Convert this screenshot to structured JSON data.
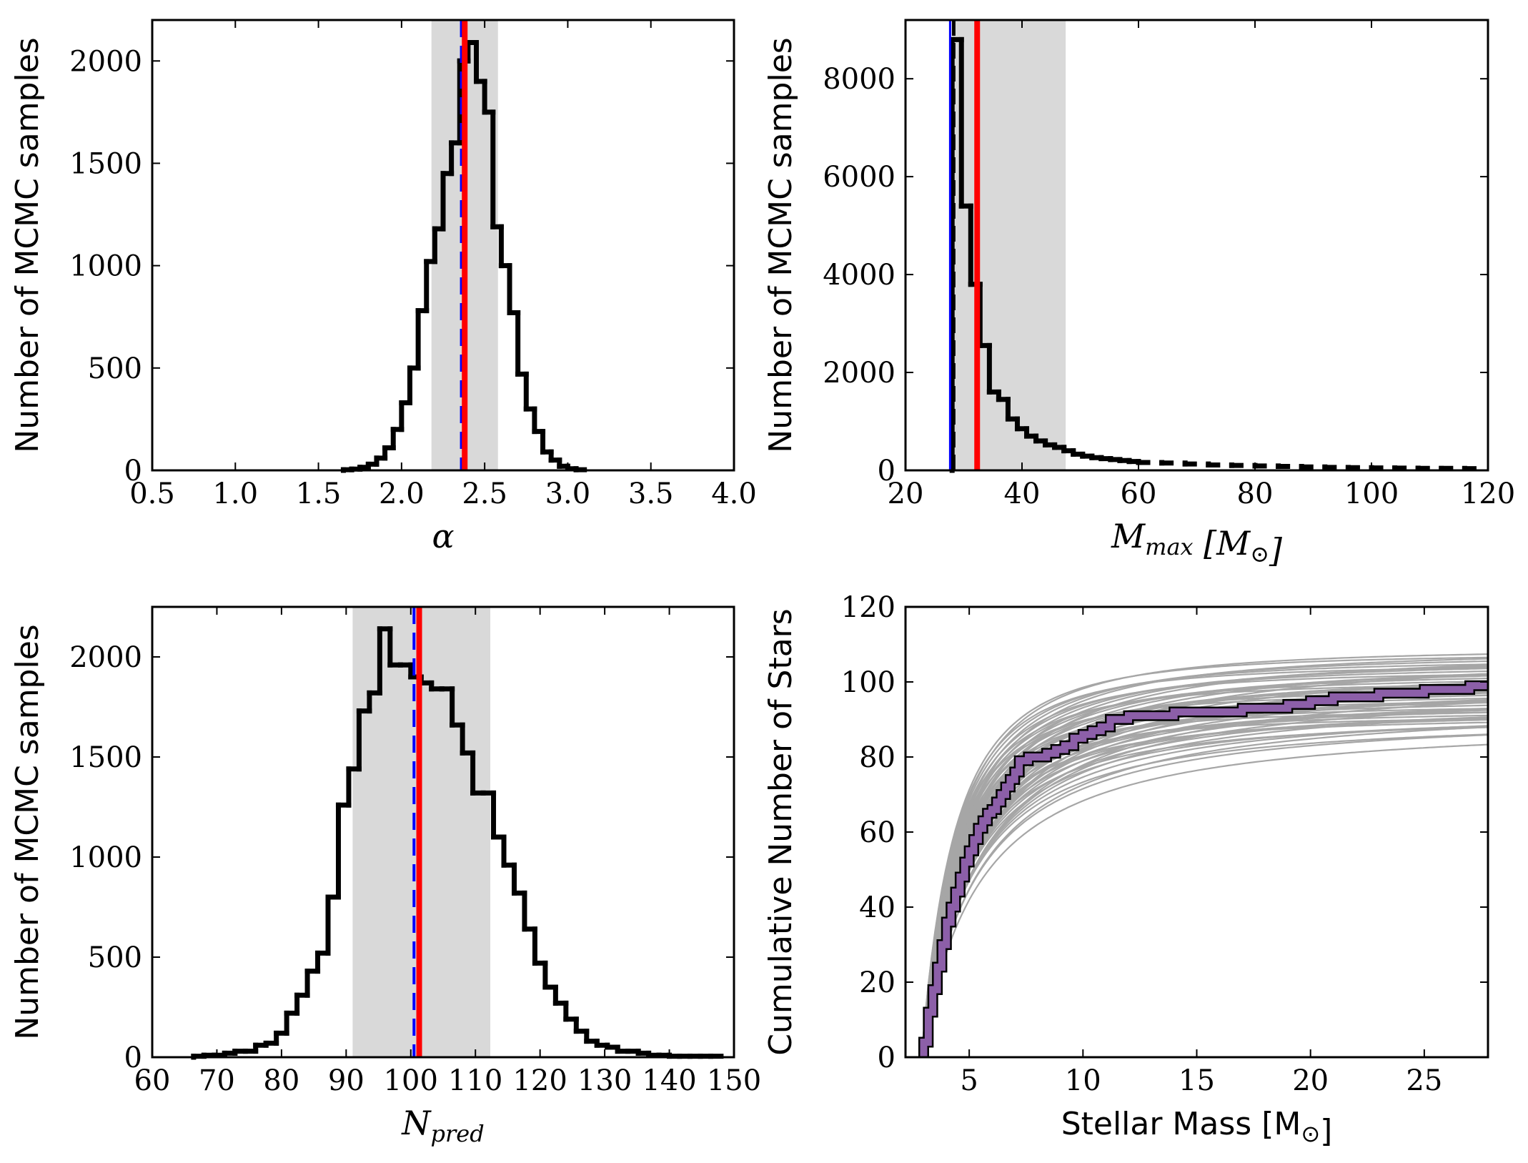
{
  "chart_data": [
    {
      "id": "alpha",
      "type": "histogram",
      "title": "",
      "xlabel": "α",
      "ylabel": "Number of MCMC samples",
      "xlim": [
        0.5,
        4.0
      ],
      "ylim": [
        0,
        2200
      ],
      "xticks": [
        "0.5",
        "1.0",
        "1.5",
        "2.0",
        "2.5",
        "3.0",
        "3.5",
        "4.0"
      ],
      "yticks": [
        "0",
        "500",
        "1000",
        "1500",
        "2000"
      ],
      "bin_width": 0.05,
      "bins_x": [
        1.65,
        1.7,
        1.75,
        1.8,
        1.85,
        1.9,
        1.95,
        2.0,
        2.05,
        2.1,
        2.15,
        2.2,
        2.25,
        2.3,
        2.35,
        2.4,
        2.45,
        2.5,
        2.55,
        2.6,
        2.65,
        2.7,
        2.75,
        2.8,
        2.85,
        2.9,
        2.95,
        3.0,
        3.05
      ],
      "counts": [
        3,
        6,
        15,
        30,
        60,
        110,
        200,
        330,
        500,
        780,
        1020,
        1180,
        1450,
        1600,
        2000,
        2090,
        1900,
        1750,
        1190,
        1000,
        770,
        470,
        300,
        190,
        90,
        50,
        20,
        8,
        3
      ],
      "shaded_interval": [
        2.18,
        2.58
      ],
      "dashed_line": 2.36,
      "solid_line": 2.38,
      "colors": {
        "hist": "#000000",
        "shade": "#d9d9d9",
        "dashed": "#0000ff",
        "solid": "#ff0000"
      }
    },
    {
      "id": "mmax",
      "type": "histogram",
      "title": "",
      "xlabel": "M_max [M_⊙]",
      "ylabel": "Number of MCMC samples",
      "xlim": [
        20,
        120
      ],
      "ylim": [
        0,
        9200
      ],
      "xticks": [
        "20",
        "40",
        "60",
        "80",
        "100",
        "120"
      ],
      "yticks": [
        "0",
        "2000",
        "4000",
        "6000",
        "8000"
      ],
      "bin_width": 1.6,
      "bins_x": [
        28,
        29.6,
        31.2,
        32.8,
        34.4,
        36,
        37.6,
        39.2,
        40.8,
        42.4,
        44,
        45.6,
        47.2,
        48.8,
        50.4,
        52,
        53.6,
        55.2,
        56.8,
        58.4,
        60,
        64,
        68,
        72,
        76,
        80,
        84,
        88,
        92,
        96,
        100,
        104,
        108,
        112,
        116
      ],
      "counts": [
        8800,
        5400,
        3800,
        2550,
        1600,
        1450,
        1050,
        850,
        700,
        600,
        520,
        470,
        400,
        330,
        290,
        260,
        240,
        220,
        200,
        180,
        160,
        150,
        130,
        110,
        100,
        90,
        80,
        70,
        60,
        55,
        50,
        45,
        40,
        40,
        35
      ],
      "shaded_interval": [
        28,
        47.5
      ],
      "dashed_line": 27.9,
      "blue_line": 27.9,
      "solid_line": 32.3,
      "colors": {
        "hist": "#000000",
        "shade": "#d9d9d9",
        "dashed": "#0000ff",
        "solid": "#ff0000"
      }
    },
    {
      "id": "npred",
      "type": "histogram",
      "title": "",
      "xlabel": "N_pred",
      "ylabel": "Number of MCMC samples",
      "xlim": [
        60,
        150
      ],
      "ylim": [
        0,
        2250
      ],
      "xticks": [
        "60",
        "70",
        "80",
        "90",
        "100",
        "110",
        "120",
        "130",
        "140",
        "150"
      ],
      "yticks": [
        "0",
        "500",
        "1000",
        "1500",
        "2000"
      ],
      "bin_width": 1.6,
      "bins_x": [
        66.4,
        68,
        69.6,
        71.2,
        72.8,
        74.4,
        76,
        77.6,
        79.2,
        80.8,
        82.4,
        84,
        85.6,
        87.2,
        88.8,
        90.4,
        92,
        93.6,
        95.2,
        96.8,
        98.4,
        100,
        101.6,
        103.2,
        104.8,
        106.4,
        108,
        109.6,
        111.2,
        112.8,
        114.4,
        116,
        117.6,
        119.2,
        120.8,
        122.4,
        124,
        125.6,
        127.2,
        128.8,
        130.4,
        132,
        133.6,
        135.2,
        136.8,
        138.4,
        140,
        141.6,
        143.2,
        144.8,
        146.4
      ],
      "counts": [
        5,
        10,
        10,
        20,
        30,
        30,
        60,
        70,
        120,
        220,
        310,
        430,
        520,
        800,
        1260,
        1440,
        1730,
        1820,
        2140,
        1960,
        1960,
        1900,
        1870,
        1840,
        1840,
        1660,
        1520,
        1320,
        1320,
        1100,
        960,
        820,
        640,
        470,
        350,
        270,
        190,
        130,
        80,
        60,
        50,
        30,
        30,
        20,
        10,
        10,
        5,
        5,
        5,
        5,
        5
      ],
      "shaded_interval": [
        91,
        112.3
      ],
      "dashed_line": 100.5,
      "solid_line": 101.3,
      "colors": {
        "hist": "#000000",
        "shade": "#d9d9d9",
        "dashed": "#0000ff",
        "solid": "#ff0000"
      }
    },
    {
      "id": "cumulative",
      "type": "line",
      "title": "",
      "xlabel": "Stellar Mass [M_⊙]",
      "ylabel": "Cumulative Number of Stars",
      "xlim": [
        2.2,
        27.8
      ],
      "ylim": [
        0,
        120
      ],
      "xticks": [
        "5",
        "10",
        "15",
        "20",
        "25"
      ],
      "yticks": [
        "0",
        "20",
        "40",
        "60",
        "80",
        "100",
        "120"
      ],
      "model_curves": {
        "count": 60,
        "m_start": 2.9,
        "n_min": 90,
        "n_max": 109,
        "color": "#a6a6a6"
      },
      "observed": {
        "x": [
          2.9,
          3.0,
          3.2,
          3.4,
          3.6,
          3.8,
          4.0,
          4.2,
          4.4,
          4.6,
          4.8,
          5.0,
          5.2,
          5.4,
          5.6,
          5.8,
          6.0,
          6.2,
          6.4,
          6.6,
          6.8,
          7.0,
          7.2,
          7.6,
          8.0,
          8.4,
          8.8,
          9.2,
          9.6,
          10.0,
          10.4,
          10.8,
          11.2,
          12.0,
          13.0,
          14.0,
          15.0,
          16.0,
          17.0,
          18.0,
          19.0,
          20.0,
          21.0,
          22.0,
          23.0,
          24.0,
          25.0,
          26.0,
          27.0,
          27.8
        ],
        "y": [
          0,
          4,
          12,
          18,
          24,
          30,
          36,
          40,
          44,
          48,
          52,
          55,
          58,
          61,
          63,
          65,
          66,
          68,
          70,
          72,
          74,
          76,
          79,
          80,
          80,
          81,
          82,
          83,
          85,
          86,
          87,
          88,
          90,
          91,
          91,
          92,
          92,
          92,
          93,
          93,
          94,
          95,
          96,
          96,
          97,
          97,
          98,
          98,
          99,
          100
        ],
        "fill_color": "#8c5fa8",
        "edge_color": "#000000"
      }
    }
  ]
}
